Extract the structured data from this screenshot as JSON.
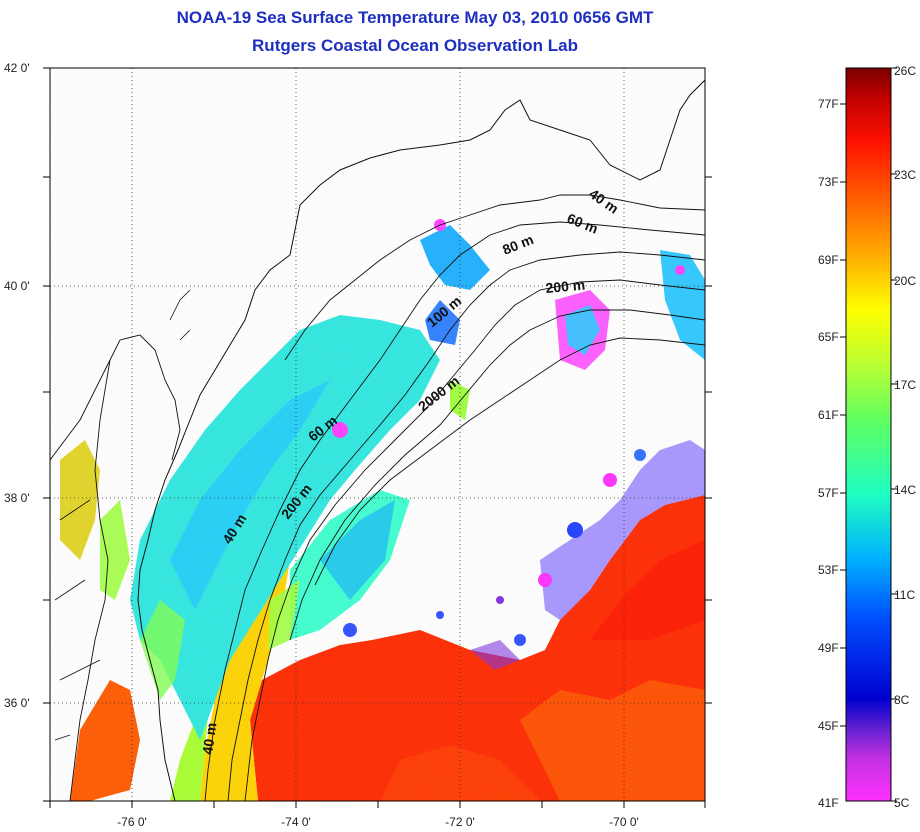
{
  "title": {
    "line1": "NOAA-19 Sea Surface Temperature May 03, 2010 0656 GMT",
    "line2": "Rutgers Coastal Ocean Observation Lab"
  },
  "map": {
    "lon_ticks": [
      "-76 0'",
      "-74 0'",
      "-72 0'",
      "-70 0'"
    ],
    "lat_ticks": [
      "42 0'",
      "40 0'",
      "38 0'",
      "36 0'"
    ],
    "contour_labels": [
      "40 m",
      "60 m",
      "80 m",
      "100 m",
      "200 m",
      "2000 m",
      "60 m",
      "40 m",
      "200 m",
      "40 m"
    ]
  },
  "colorbar": {
    "celsius": [
      "26C",
      "23C",
      "20C",
      "17C",
      "14C",
      "11C",
      "8C",
      "5C"
    ],
    "fahrenheit": [
      "77F",
      "73F",
      "69F",
      "65F",
      "61F",
      "57F",
      "53F",
      "49F",
      "45F",
      "41F"
    ],
    "colors": [
      "#7a0000",
      "#d40000",
      "#ff3000",
      "#ff8000",
      "#ffd000",
      "#e8ff20",
      "#80ff40",
      "#20ffc0",
      "#00c0ff",
      "#0050ff",
      "#0000d0",
      "#7020d0",
      "#ff30ff"
    ]
  }
}
